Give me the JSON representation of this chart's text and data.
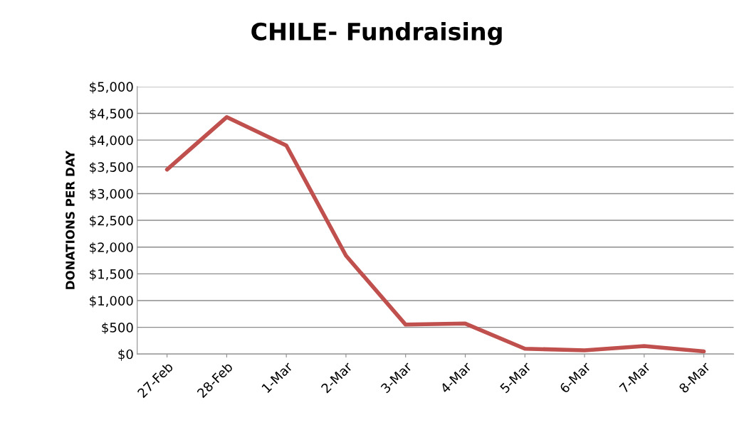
{
  "chart_data": {
    "type": "line",
    "title": "CHILE- Fundraising",
    "ylabel": "DONATIONS PER DAY",
    "categories": [
      "27-Feb",
      "28-Feb",
      "1-Mar",
      "2-Mar",
      "3-Mar",
      "4-Mar",
      "5-Mar",
      "6-Mar",
      "7-Mar",
      "8-Mar"
    ],
    "series": [
      {
        "color": "#c0504d",
        "values": [
          3450,
          4430,
          3900,
          1840,
          550,
          570,
          100,
          70,
          150,
          50
        ]
      }
    ],
    "ylim": [
      0,
      5000
    ],
    "yticks": [
      {
        "value": 0,
        "label": "$0"
      },
      {
        "value": 500,
        "label": "$500"
      },
      {
        "value": 1000,
        "label": "$1,000"
      },
      {
        "value": 1500,
        "label": "$1,500"
      },
      {
        "value": 2000,
        "label": "$2,000"
      },
      {
        "value": 2500,
        "label": "$2,500"
      },
      {
        "value": 3000,
        "label": "$3,000"
      },
      {
        "value": 3500,
        "label": "$3,500"
      },
      {
        "value": 4000,
        "label": "$4,000"
      },
      {
        "value": 4500,
        "label": "$4,500"
      },
      {
        "value": 5000,
        "label": "$5,000"
      }
    ],
    "grid": "y",
    "marker": "none",
    "line_style": "solid"
  }
}
